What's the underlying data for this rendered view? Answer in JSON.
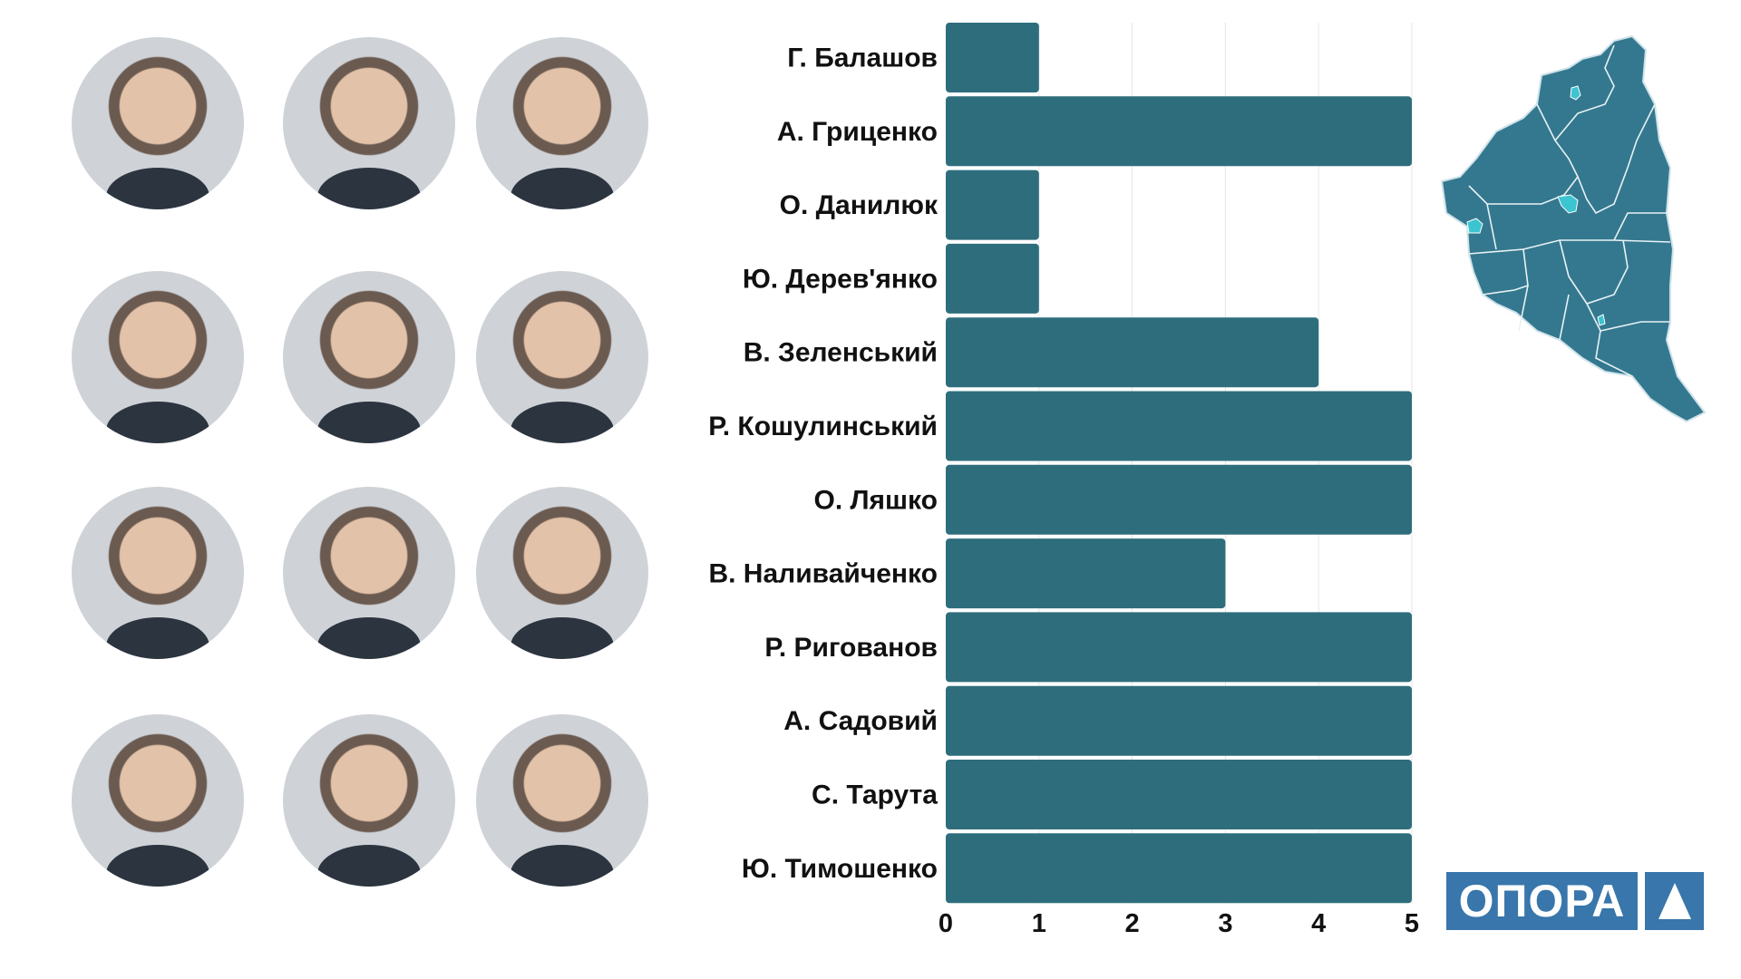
{
  "chart_data": {
    "type": "bar",
    "orientation": "horizontal",
    "categories": [
      "Г. Балашов",
      "А. Гриценко",
      "О. Данилюк",
      "Ю. Дерев'янко",
      "В. Зеленський",
      "Р. Кошулинський",
      "О. Ляшко",
      "В. Наливайченко",
      "Р. Ригованов",
      "А. Садовий",
      "С. Тарута",
      "Ю. Тимошенко"
    ],
    "values": [
      1,
      5,
      1,
      1,
      4,
      5,
      5,
      3,
      5,
      5,
      5,
      5
    ],
    "xlim": [
      0,
      5
    ],
    "xticks": [
      "0",
      "1",
      "2",
      "3",
      "4",
      "5"
    ],
    "grid": true,
    "bar_color": "#2e6e7c",
    "title": "",
    "xlabel": "",
    "ylabel": ""
  },
  "logo": {
    "text": "ОПОРА",
    "color": "#3876ab"
  },
  "map": {
    "fill": "#34788f",
    "highlight": "#3cc4d0"
  }
}
